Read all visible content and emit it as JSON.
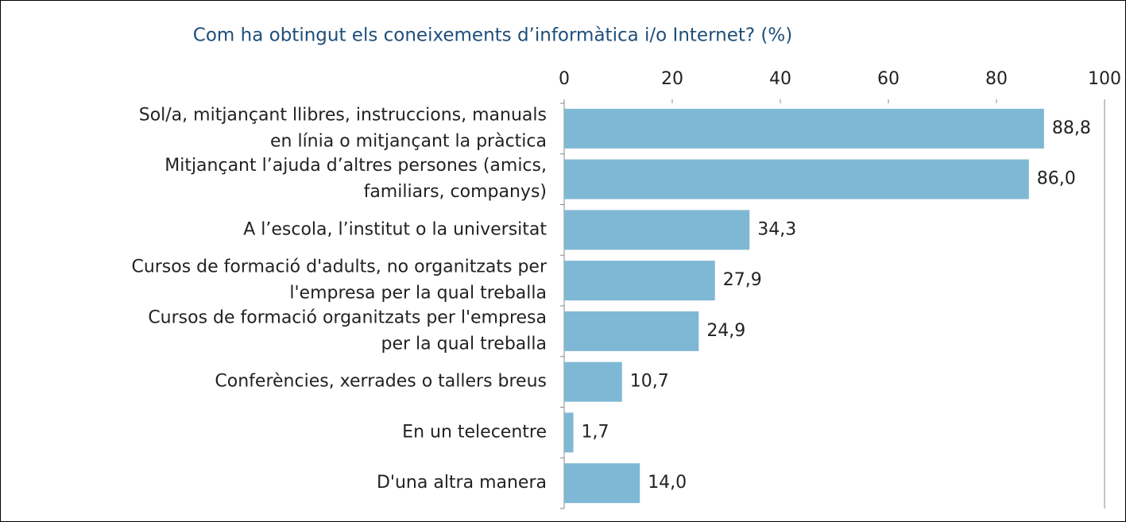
{
  "chart_data": {
    "type": "bar",
    "orientation": "horizontal",
    "title": "Com ha obtingut els coneixements d’informàtica i/o Internet? (%)",
    "categories": [
      [
        "Sol/a, mitjançant llibres, instruccions, manuals",
        "en línia o mitjançant la pràctica"
      ],
      [
        "Mitjançant l’ajuda d’altres persones (amics,",
        "familiars, companys)"
      ],
      [
        "A l’escola, l’institut o la universitat"
      ],
      [
        "Cursos de formació d'adults, no organitzats per",
        "l'empresa per la qual treballa"
      ],
      [
        "Cursos de formació organitzats per l'empresa",
        "per la qual treballa"
      ],
      [
        "Conferències, xerrades o tallers breus"
      ],
      [
        "En un telecentre"
      ],
      [
        "D'una altra manera"
      ]
    ],
    "values": [
      88.8,
      86.0,
      34.3,
      27.9,
      24.9,
      10.7,
      1.7,
      14.0
    ],
    "value_labels": [
      "88,8",
      "86,0",
      "34,3",
      "27,9",
      "24,9",
      "10,7",
      "1,7",
      "14,0"
    ],
    "color": "#7fb8d4",
    "xlim": [
      0,
      100
    ],
    "xticks": [
      0,
      20,
      40,
      60,
      80,
      100
    ]
  }
}
